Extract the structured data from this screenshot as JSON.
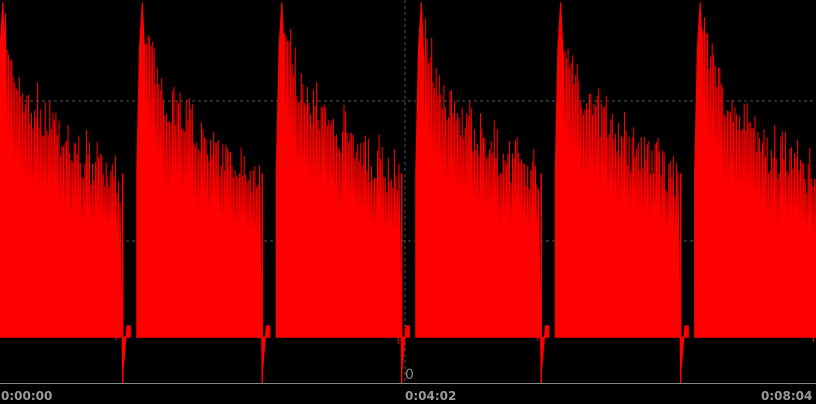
{
  "chart_data": {
    "type": "area",
    "x_ticks": [
      "0:00:00",
      "0:04:02",
      "0:08:04"
    ],
    "center_label": "0",
    "colors": {
      "series": "#ff0000",
      "background": "#000000",
      "grid": "#555555",
      "axis": "#888888"
    },
    "grid": true,
    "cycles": 6,
    "cycle_seconds": 80.7,
    "envelope_upper": [
      0.97,
      0.94,
      0.88,
      0.83,
      0.8,
      0.78,
      0.8,
      0.74,
      0.76,
      0.72,
      0.7,
      0.74,
      0.66,
      0.7,
      0.64,
      0.68,
      0.62,
      0.66,
      0.64,
      0.6,
      0.63,
      0.58
    ],
    "envelope_lower": [
      0.3,
      0.2,
      0.16,
      0.19,
      0.14,
      0.17,
      0.15,
      0.18,
      0.14,
      0.17,
      0.13,
      0.16,
      0.14,
      0.17,
      0.13,
      0.16,
      0.13,
      0.15,
      0.12,
      0.14,
      0.11,
      0.1
    ]
  }
}
